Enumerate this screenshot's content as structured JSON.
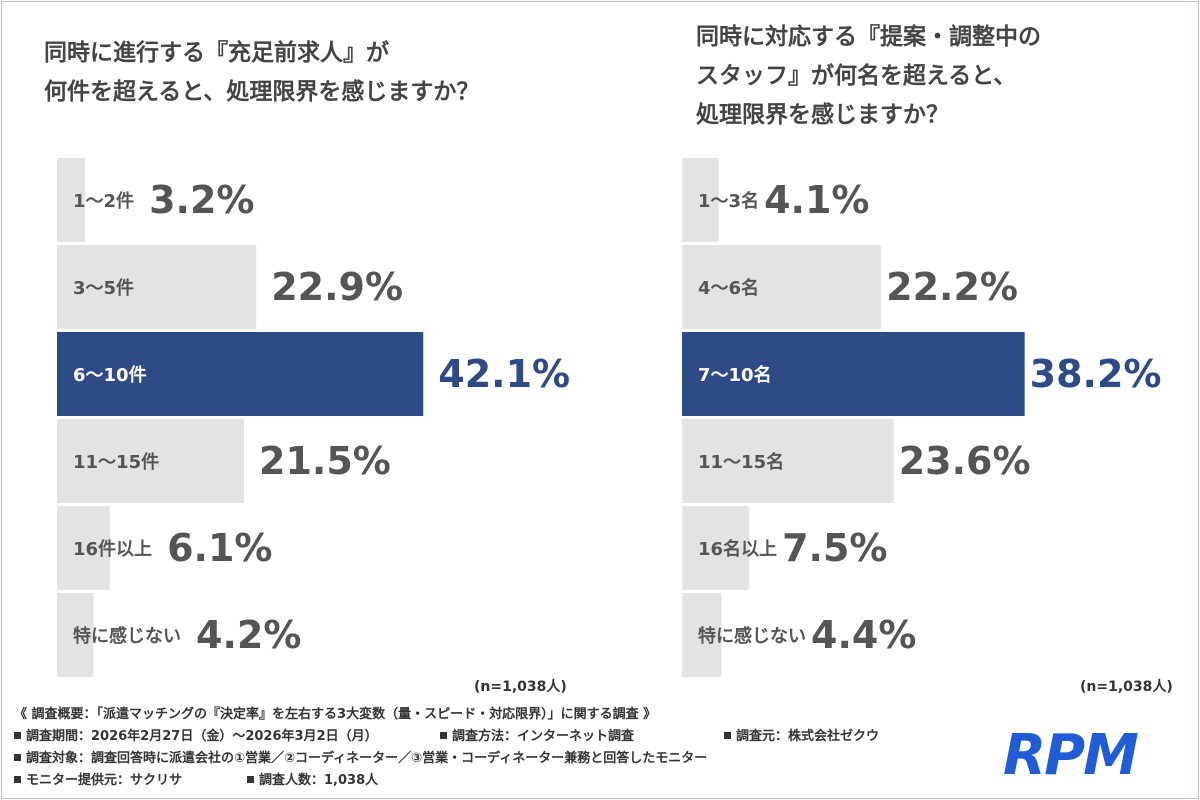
{
  "chart_data": [
    {
      "type": "bar",
      "orientation": "horizontal",
      "title_lines": [
        "同時に進行する『充足前求人』が",
        "何件を超えると、処理限界を感じますか？"
      ],
      "categories": [
        "1〜2件",
        "3〜5件",
        "6〜10件",
        "11〜15件",
        "16件以上",
        "特に感じない"
      ],
      "values": [
        3.2,
        22.9,
        42.1,
        21.5,
        6.1,
        4.2
      ],
      "value_labels": [
        "3.2%",
        "22.9%",
        "42.1%",
        "21.5%",
        "6.1%",
        "4.2%"
      ],
      "highlight_index": 2,
      "xlim": [
        0,
        100
      ],
      "note": "(n=1,038人)"
    },
    {
      "type": "bar",
      "orientation": "horizontal",
      "title_lines": [
        "同時に対応する『提案・調整中の",
        "スタッフ』が何名を超えると、",
        "処理限界を感じますか？"
      ],
      "categories": [
        "1〜3名",
        "4〜6名",
        "7〜10名",
        "11〜15名",
        "16名以上",
        "特に感じない"
      ],
      "values": [
        4.1,
        22.2,
        38.2,
        23.6,
        7.5,
        4.4
      ],
      "value_labels": [
        "4.1%",
        "22.2%",
        "38.2%",
        "23.6%",
        "7.5%",
        "4.4%"
      ],
      "highlight_index": 2,
      "xlim": [
        0,
        100
      ],
      "note": "(n=1,038人)"
    }
  ],
  "colors": {
    "highlight_bar": "#2e4a87",
    "bar": "#e3e3e3",
    "text": "#555555",
    "logo": "#1f5cd6"
  },
  "footer": {
    "summary": "《 調査概要：「派遣マッチングの『決定率』を左右する3大変数（量・スピード・対応限界）」に関する調査 》",
    "period": "調査期間：2026年2月27日（金）〜2026年3月2日（月）",
    "method": "調査方法：インターネット調査",
    "source": "調査元：株式会社ゼクウ",
    "target": "調査対象：調査回答時に派遣会社の①営業／②コーディネーター／③営業・コーディネーター兼務と回答したモニター",
    "provider": "モニター提供元：サクリサ",
    "count": "調査人数：1,038人"
  },
  "logo": {
    "text": "RPM"
  }
}
